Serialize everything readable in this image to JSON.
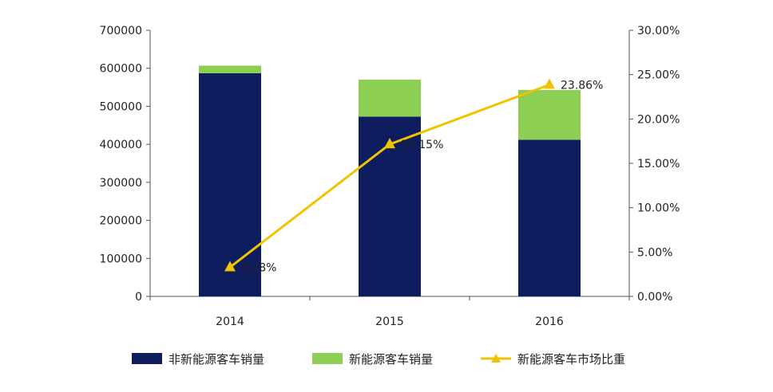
{
  "chart_data": {
    "type": "bar",
    "categories": [
      "2014",
      "2015",
      "2016"
    ],
    "series": [
      {
        "name": "非新能源客车销量",
        "kind": "bar",
        "stack": "sales",
        "axis": "left",
        "color": "#0d1d5e",
        "values": [
          587000,
          473000,
          412000
        ]
      },
      {
        "name": "新能源客车销量",
        "kind": "bar",
        "stack": "sales",
        "axis": "left",
        "color": "#8ccf52",
        "values": [
          20000,
          97000,
          131000
        ]
      },
      {
        "name": "新能源客车市场比重",
        "kind": "line",
        "axis": "right",
        "color": "#f2c300",
        "marker": "triangle",
        "values": [
          3.28,
          17.15,
          23.86
        ],
        "data_labels": [
          "3.28%",
          "17.15%",
          "23.86%"
        ]
      }
    ],
    "y_left": {
      "lim": [
        0,
        700000
      ],
      "ticks": [
        "0",
        "100000",
        "200000",
        "300000",
        "400000",
        "500000",
        "600000",
        "700000"
      ]
    },
    "y_right": {
      "lim": [
        0,
        30
      ],
      "ticks": [
        "0.00%",
        "5.00%",
        "10.00%",
        "15.00%",
        "20.00%",
        "25.00%",
        "30.00%"
      ]
    },
    "grid": false,
    "legend_position": "bottom"
  }
}
